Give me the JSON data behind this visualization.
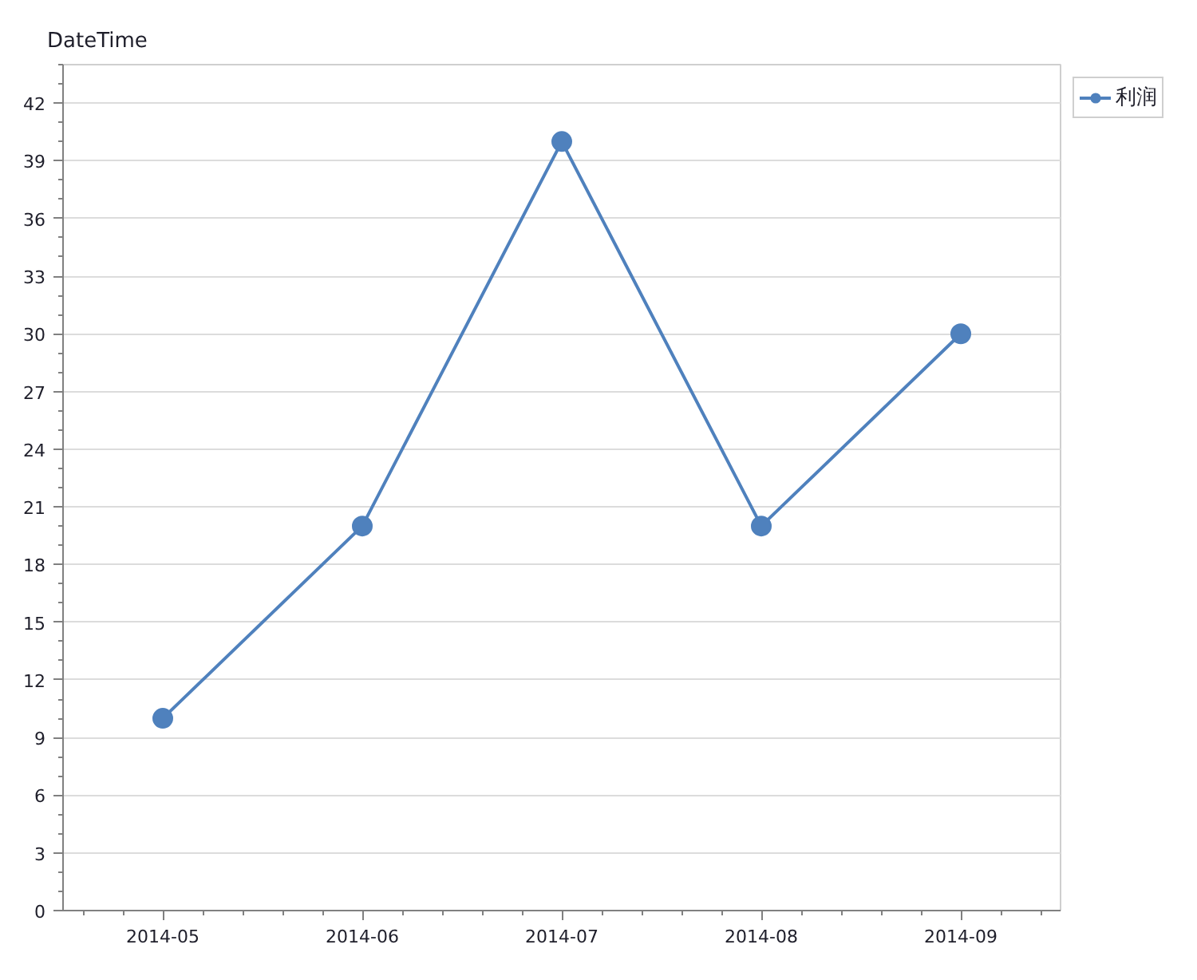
{
  "chart_data": {
    "type": "line",
    "title": "DateTime",
    "categories": [
      "2014-05",
      "2014-06",
      "2014-07",
      "2014-08",
      "2014-09"
    ],
    "series": [
      {
        "name": "利润",
        "color": "#4f81bd",
        "values": [
          10,
          20,
          40,
          20,
          30
        ]
      }
    ],
    "ylim": [
      0,
      44
    ],
    "yticks": [
      0,
      3,
      6,
      9,
      12,
      15,
      18,
      21,
      24,
      27,
      30,
      33,
      36,
      39,
      42
    ],
    "grid": "y",
    "legend": "top right",
    "marker": "circle",
    "line_style": "solid"
  }
}
